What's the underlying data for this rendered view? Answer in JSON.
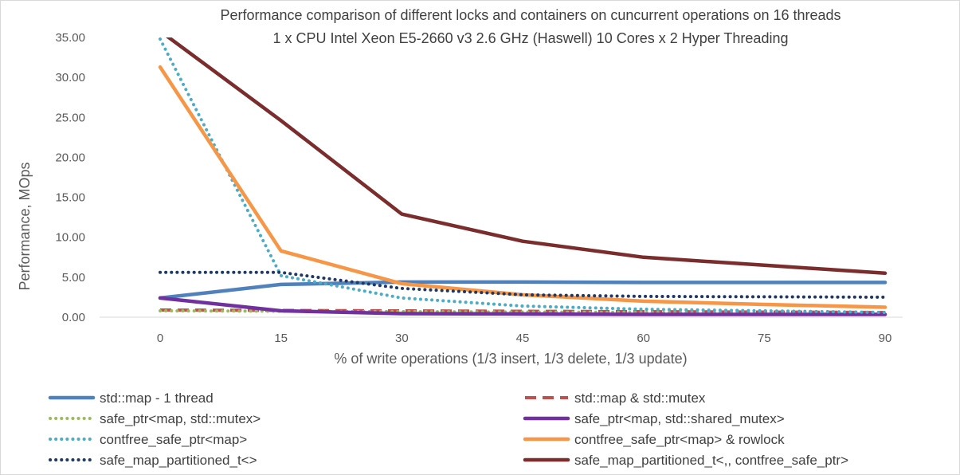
{
  "chart_data": {
    "type": "line",
    "title": "Performance comparison of different locks and containers on cuncurrent operations on 16 threads",
    "subtitle": "1 x CPU Intel Xeon E5-2660 v3 2.6 GHz (Haswell) 10 Cores x 2 Hyper Threading",
    "xlabel": "% of write operations (1/3 insert, 1/3 delete, 1/3 update)",
    "ylabel": "Performance, MOps",
    "ylim": [
      0,
      35
    ],
    "yticks": [
      "0.00",
      "5.00",
      "10.00",
      "15.00",
      "20.00",
      "25.00",
      "30.00",
      "35.00"
    ],
    "x": [
      0,
      15,
      30,
      45,
      60,
      75,
      90
    ],
    "xticks": [
      "0",
      "15",
      "30",
      "45",
      "60",
      "75",
      "90"
    ],
    "grid": false,
    "legend": "bottom",
    "series": [
      {
        "name": "std::map - 1 thread",
        "color": "#4f81bd",
        "style": "solid",
        "values": [
          2.4,
          4.1,
          4.4,
          4.4,
          4.35,
          4.35,
          4.35
        ]
      },
      {
        "name": "std::map & std::mutex",
        "color": "#c0504d",
        "style": "dashed",
        "values": [
          0.9,
          0.85,
          0.8,
          0.75,
          0.7,
          0.65,
          0.6
        ]
      },
      {
        "name": "safe_ptr<map, std::mutex>",
        "color": "#9bbb59",
        "style": "dotted",
        "values": [
          0.8,
          0.75,
          0.7,
          0.65,
          0.6,
          0.55,
          0.5
        ]
      },
      {
        "name": "safe_ptr<map, std::shared_mutex>",
        "color": "#7030a0",
        "style": "solid",
        "values": [
          2.4,
          0.8,
          0.45,
          0.4,
          0.35,
          0.35,
          0.35
        ]
      },
      {
        "name": "contfree_safe_ptr<map>",
        "color": "#4bacc6",
        "style": "dotted",
        "values": [
          34.8,
          5.2,
          2.4,
          1.4,
          1.0,
          0.8,
          0.6
        ]
      },
      {
        "name": "contfree_safe_ptr<map> & rowlock",
        "color": "#f79646",
        "style": "solid",
        "values": [
          31.3,
          8.3,
          4.2,
          2.8,
          2.0,
          1.6,
          1.25
        ]
      },
      {
        "name": "safe_map_partitioned_t<>",
        "color": "#1f3864",
        "style": "dotted",
        "values": [
          5.6,
          5.6,
          3.6,
          2.8,
          2.6,
          2.55,
          2.5
        ]
      },
      {
        "name": "safe_map_partitioned_t<,, contfree_safe_ptr>",
        "color": "#7b2c2c",
        "style": "solid",
        "values": [
          35.8,
          24.6,
          12.9,
          9.5,
          7.5,
          6.5,
          5.5
        ]
      }
    ]
  }
}
